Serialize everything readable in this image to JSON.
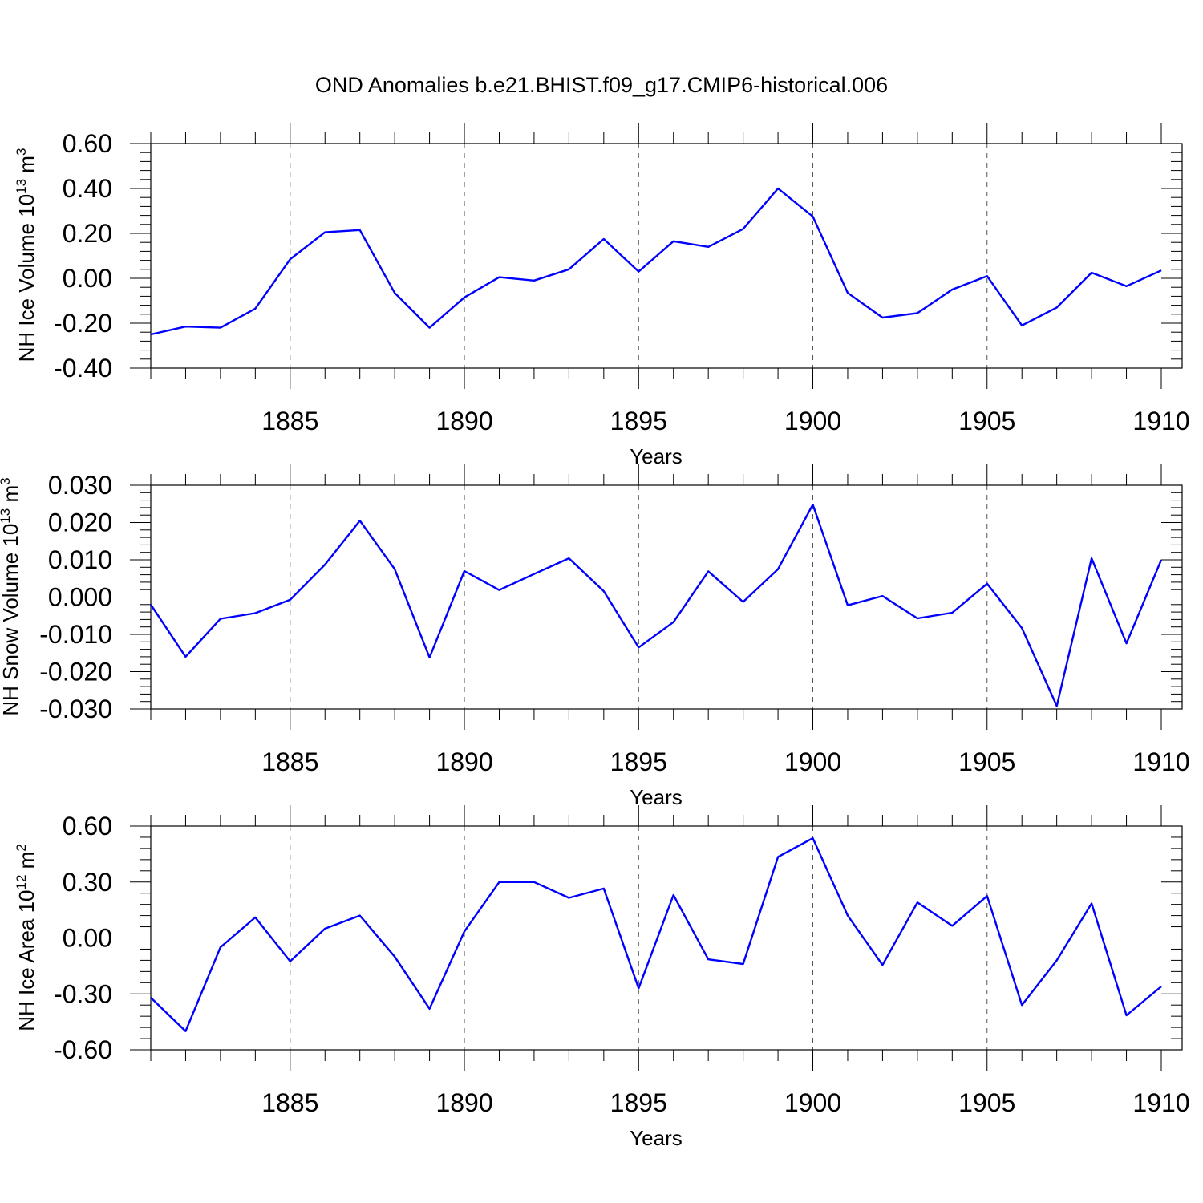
{
  "figure_title": "OND Anomalies b.e21.BHIST.f09_g17.CMIP6-historical.006",
  "colors": {
    "series": "#0000ff",
    "axes": "#000000",
    "grid": "#555555"
  },
  "chart_data": [
    {
      "type": "line",
      "ylabel_main": "NH Ice Volume 10",
      "ylabel_exp": "13",
      "ylabel_unit": " m",
      "ylabel_unit_exp": "3",
      "xlabel": "Years",
      "xlim": [
        1881,
        1910
      ],
      "ylim": [
        -0.4,
        0.6
      ],
      "yticks": [
        0.6,
        0.4,
        0.2,
        0.0,
        -0.2,
        -0.4
      ],
      "ytick_labels": [
        "0.60",
        "0.40",
        "0.20",
        "0.00",
        "-0.20",
        "-0.40"
      ],
      "xticks": [
        1885,
        1890,
        1895,
        1900,
        1905,
        1910
      ],
      "xtick_labels": [
        "1885",
        "1890",
        "1895",
        "1900",
        "1905",
        "1910"
      ],
      "grid": "vertical dashed at major x ticks",
      "x": [
        1881,
        1882,
        1883,
        1884,
        1885,
        1886,
        1887,
        1888,
        1889,
        1890,
        1891,
        1892,
        1893,
        1894,
        1895,
        1896,
        1897,
        1898,
        1899,
        1900,
        1901,
        1902,
        1903,
        1904,
        1905,
        1906,
        1907,
        1908,
        1909,
        1910
      ],
      "values": [
        -0.25,
        -0.215,
        -0.22,
        -0.135,
        0.085,
        0.205,
        0.215,
        -0.065,
        -0.22,
        -0.085,
        0.005,
        -0.01,
        0.04,
        0.175,
        0.03,
        0.165,
        0.14,
        0.22,
        0.4,
        0.275,
        -0.065,
        -0.175,
        -0.155,
        -0.05,
        0.01,
        -0.21,
        -0.13,
        0.025,
        -0.035,
        0.035
      ]
    },
    {
      "type": "line",
      "ylabel_main": "NH Snow Volume 10",
      "ylabel_exp": "13",
      "ylabel_unit": " m",
      "ylabel_unit_exp": "3",
      "xlabel": "Years",
      "xlim": [
        1881,
        1910
      ],
      "ylim": [
        -0.03,
        0.03
      ],
      "yticks": [
        0.03,
        0.02,
        0.01,
        0.0,
        -0.01,
        -0.02,
        -0.03
      ],
      "ytick_labels": [
        "0.030",
        "0.020",
        "0.010",
        "0.000",
        "-0.010",
        "-0.020",
        "-0.030"
      ],
      "xticks": [
        1885,
        1890,
        1895,
        1900,
        1905,
        1910
      ],
      "xtick_labels": [
        "1885",
        "1890",
        "1895",
        "1900",
        "1905",
        "1910"
      ],
      "grid": "vertical dashed at major x ticks",
      "x": [
        1881,
        1882,
        1883,
        1884,
        1885,
        1886,
        1887,
        1888,
        1889,
        1890,
        1891,
        1892,
        1893,
        1894,
        1895,
        1896,
        1897,
        1898,
        1899,
        1900,
        1901,
        1902,
        1903,
        1904,
        1905,
        1906,
        1907,
        1908,
        1909,
        1910
      ],
      "values": [
        -0.002,
        -0.016,
        -0.0058,
        -0.0043,
        -0.0007,
        0.0087,
        0.0205,
        0.0075,
        -0.0162,
        0.007,
        0.0019,
        0.0062,
        0.0104,
        0.0016,
        -0.0135,
        -0.0067,
        0.0069,
        -0.0013,
        0.0075,
        0.0248,
        -0.0022,
        0.0003,
        -0.0057,
        -0.0042,
        0.0036,
        -0.0083,
        -0.0292,
        0.0104,
        -0.0124,
        0.01
      ]
    },
    {
      "type": "line",
      "ylabel_main": "NH Ice Area 10",
      "ylabel_exp": "12",
      "ylabel_unit": " m",
      "ylabel_unit_exp": "2",
      "xlabel": "Years",
      "xlim": [
        1881,
        1910
      ],
      "ylim": [
        -0.6,
        0.6
      ],
      "yticks": [
        0.6,
        0.3,
        0.0,
        -0.3,
        -0.6
      ],
      "ytick_labels": [
        "0.60",
        "0.30",
        "0.00",
        "-0.30",
        "-0.60"
      ],
      "xticks": [
        1885,
        1890,
        1895,
        1900,
        1905,
        1910
      ],
      "xtick_labels": [
        "1885",
        "1890",
        "1895",
        "1900",
        "1905",
        "1910"
      ],
      "grid": "vertical dashed at major x ticks",
      "x": [
        1881,
        1882,
        1883,
        1884,
        1885,
        1886,
        1887,
        1888,
        1889,
        1890,
        1891,
        1892,
        1893,
        1894,
        1895,
        1896,
        1897,
        1898,
        1899,
        1900,
        1901,
        1902,
        1903,
        1904,
        1905,
        1906,
        1907,
        1908,
        1909,
        1910
      ],
      "values": [
        -0.32,
        -0.5,
        -0.05,
        0.11,
        -0.125,
        0.05,
        0.12,
        -0.1,
        -0.38,
        0.035,
        0.3,
        0.3,
        0.215,
        0.265,
        -0.27,
        0.23,
        -0.115,
        -0.14,
        0.435,
        0.535,
        0.12,
        -0.145,
        0.19,
        0.065,
        0.225,
        -0.36,
        -0.12,
        0.185,
        -0.415,
        -0.26
      ]
    }
  ]
}
